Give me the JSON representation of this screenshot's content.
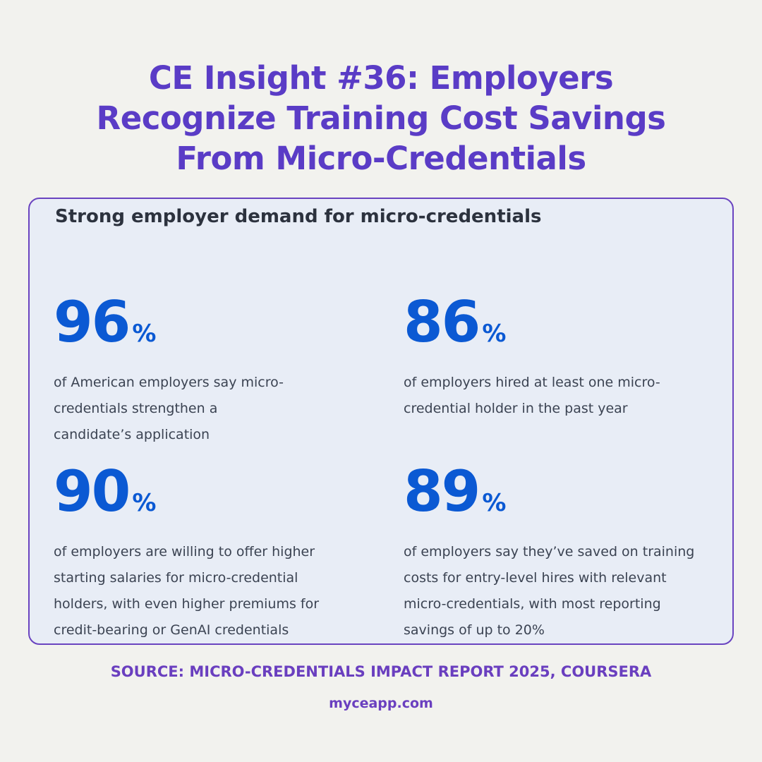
{
  "header": {
    "title": "CE Insight #36: Employers Recognize Training Cost Savings From Micro-Credentials"
  },
  "panel": {
    "heading": "Strong employer demand for micro-credentials",
    "stats": [
      {
        "value": 96,
        "unit": "%",
        "text": "of American employers say micro-credentials strengthen a candidate’s application"
      },
      {
        "value": 86,
        "unit": "%",
        "text": "of employers hired at least one micro-credential holder in the past year"
      },
      {
        "value": 90,
        "unit": "%",
        "text": "of employers are willing to offer higher starting salaries for micro-credential holders, with even higher premiums for credit-bearing or GenAI credentials"
      },
      {
        "value": 89,
        "unit": "%",
        "text": "of employers say they’ve saved on training costs for entry-level hires with relevant micro-credentials, with most reporting savings of up to 20%"
      }
    ]
  },
  "footer": {
    "source": "SOURCE: MICRO-CREDENTIALS IMPACT REPORT 2025, COURSERA",
    "website": "myceapp.com"
  }
}
